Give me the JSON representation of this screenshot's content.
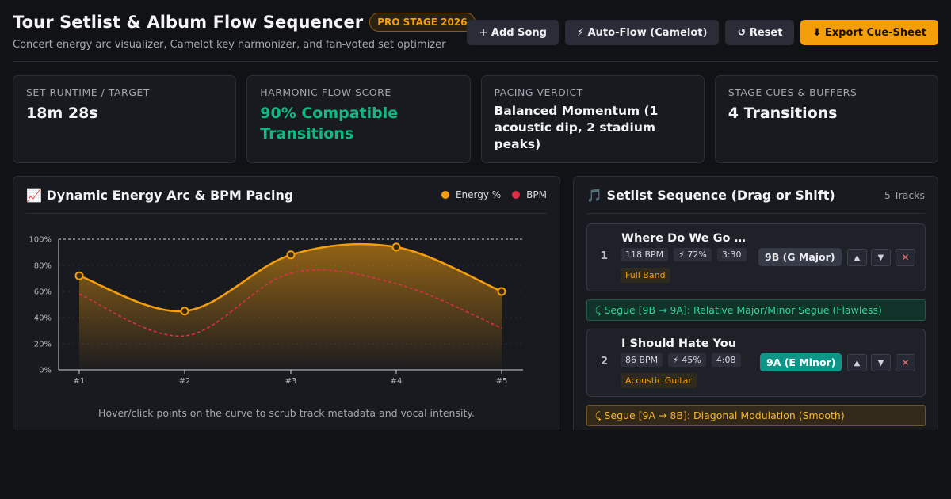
{
  "header": {
    "title": "Tour Setlist & Album Flow Sequencer",
    "badge": "PRO STAGE 2026",
    "subtitle": "Concert energy arc visualizer, Camelot key harmonizer, and fan-voted set optimizer",
    "actions": {
      "add_song": "+ Add Song",
      "auto_flow": "⚡ Auto-Flow (Camelot)",
      "reset": "↺ Reset",
      "export": "⬇ Export Cue-Sheet"
    }
  },
  "stats": [
    {
      "label": "SET RUNTIME / TARGET",
      "value": "18m 28s"
    },
    {
      "label": "HARMONIC FLOW SCORE",
      "value": "90% Compatible Transitions"
    },
    {
      "label": "PACING VERDICT",
      "value": "Balanced Momentum (1 acoustic dip, 2 stadium peaks)"
    },
    {
      "label": "STAGE CUES & BUFFERS",
      "value": "4 Transitions"
    }
  ],
  "chart_panel": {
    "title": "📈 Dynamic Energy Arc & BPM Pacing",
    "legend": [
      "Energy %",
      "BPM"
    ],
    "hint": "Hover/click points on the curve to scrub track metadata and vocal intensity."
  },
  "chart_data": {
    "type": "line",
    "categories": [
      "#1",
      "#2",
      "#3",
      "#4",
      "#5"
    ],
    "series": [
      {
        "name": "Energy %",
        "values": [
          72,
          45,
          88,
          94,
          60
        ],
        "color": "#f59e0b"
      },
      {
        "name": "BPM",
        "values": [
          58,
          26,
          74,
          66,
          32
        ],
        "color": "#dc2f4a"
      }
    ],
    "y_ticks": [
      "0%",
      "20%",
      "40%",
      "60%",
      "80%",
      "100%"
    ],
    "ylim": [
      0,
      100
    ]
  },
  "sequence_panel": {
    "title": "🎵 Setlist Sequence (Drag or Shift)",
    "count": "5 Tracks",
    "tracks": [
      {
        "num": "1",
        "name": "Where Do We Go …",
        "bpm": "118 BPM",
        "energy": "⚡ 72%",
        "duration": "3:30",
        "key": "9B (G Major)",
        "role": "Full Band"
      },
      {
        "num": "2",
        "name": "I Should Hate You",
        "bpm": "86 BPM",
        "energy": "⚡ 45%",
        "duration": "4:08",
        "key": "9A (E Minor)",
        "role": "Acoustic Guitar"
      }
    ],
    "segues": [
      "⤹ Segue [9B → 9A]: Relative Major/Minor Segue (Flawless)",
      "⤹ Segue [9A → 8B]: Diagonal Modulation (Smooth)"
    ],
    "controls": {
      "up": "▲",
      "down": "▼",
      "remove": "✕"
    }
  },
  "colors": {
    "accent": "#f59e0b",
    "good": "#10b981",
    "bpm": "#dc2f4a",
    "teal": "#0f9488"
  }
}
